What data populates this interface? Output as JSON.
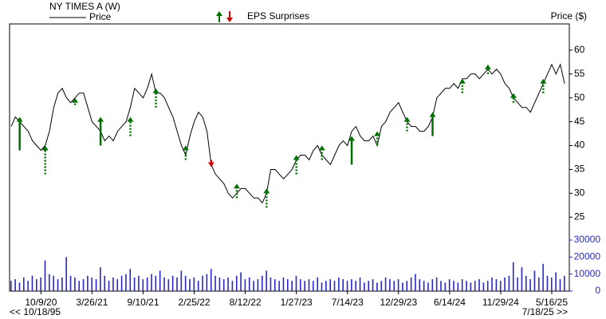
{
  "chart_data": {
    "type": "stock",
    "title": "NY TIMES  A (W)",
    "legend_price": "Price",
    "legend_eps": "EPS Surprises",
    "y_label": "Price ($)",
    "start_label": "<< 10/18/95",
    "end_label": "7/18/25 >>",
    "xlim": [
      0,
      130
    ],
    "xticks": [
      {
        "value": 7,
        "label": "10/9/20"
      },
      {
        "value": 19,
        "label": "3/26/21"
      },
      {
        "value": 31,
        "label": "9/10/21"
      },
      {
        "value": 43,
        "label": "2/25/22"
      },
      {
        "value": 55,
        "label": "8/12/22"
      },
      {
        "value": 67,
        "label": "1/27/23"
      },
      {
        "value": 79,
        "label": "7/14/23"
      },
      {
        "value": 91,
        "label": "12/29/23"
      },
      {
        "value": 103,
        "label": "6/14/24"
      },
      {
        "value": 115,
        "label": "11/29/24"
      },
      {
        "value": 127,
        "label": "5/16/25"
      }
    ],
    "ylim": [
      9.5,
      65.5
    ],
    "yticks": [
      25,
      30,
      35,
      40,
      45,
      50,
      55,
      60
    ],
    "y2lim": [
      0,
      157000
    ],
    "y2ticks": [
      0,
      10000,
      20000,
      30000
    ],
    "series": [
      {
        "name": "Price",
        "color": "#000000",
        "values": [
          44,
          46,
          45,
          44,
          43,
          41,
          40,
          39,
          40,
          43,
          48,
          51,
          52,
          50,
          49,
          50,
          51,
          51,
          48,
          45,
          44,
          43,
          41,
          42,
          41,
          43,
          44,
          45,
          48,
          52,
          51,
          50,
          52,
          55,
          51,
          51,
          50,
          48,
          46,
          43,
          40,
          38,
          42,
          45,
          47,
          46,
          43,
          36,
          34,
          33,
          32,
          30,
          29,
          30,
          31,
          31,
          30,
          29,
          29,
          28,
          30,
          35,
          35,
          34,
          33,
          34,
          35,
          37,
          38,
          38,
          37,
          39,
          40,
          38,
          37,
          36,
          38,
          40,
          41,
          40,
          43,
          44,
          42,
          41,
          41,
          42,
          40,
          44,
          45,
          47,
          48,
          49,
          47,
          45,
          44,
          44,
          43,
          43,
          44,
          46,
          50,
          51,
          52,
          52,
          53,
          52,
          54,
          54,
          55,
          55,
          54,
          55,
          56,
          55,
          56,
          55,
          53,
          52,
          50,
          49,
          48,
          48,
          47,
          49,
          51,
          53,
          55,
          57,
          55,
          57,
          53
        ]
      },
      {
        "name": "Volume",
        "color": "#2828c8",
        "axis": "y2",
        "values": [
          6000,
          7000,
          5000,
          8000,
          6000,
          9000,
          7000,
          8000,
          18000,
          10000,
          9000,
          7000,
          8000,
          20000,
          9000,
          8000,
          6000,
          7000,
          9000,
          8000,
          7000,
          14000,
          9000,
          6000,
          8000,
          7000,
          9000,
          10000,
          13000,
          8000,
          9000,
          7000,
          8000,
          10000,
          9000,
          12000,
          8000,
          7000,
          9000,
          8000,
          12000,
          9000,
          7000,
          8000,
          6000,
          9000,
          10000,
          13000,
          9000,
          8000,
          7000,
          8000,
          6000,
          9000,
          11000,
          7000,
          8000,
          6000,
          7000,
          9000,
          12000,
          8000,
          7000,
          6000,
          8000,
          7000,
          6000,
          9000,
          7000,
          6000,
          7000,
          6000,
          8000,
          5000,
          6000,
          7000,
          6000,
          8000,
          7000,
          6000,
          7000,
          6000,
          8000,
          5000,
          6000,
          7000,
          5000,
          6000,
          8000,
          7000,
          6000,
          7000,
          5000,
          6000,
          8000,
          10000,
          7000,
          6000,
          5000,
          7000,
          8000,
          6000,
          5000,
          7000,
          6000,
          5000,
          7000,
          6000,
          5000,
          6000,
          7000,
          5000,
          6000,
          8000,
          7000,
          6000,
          8000,
          9000,
          17000,
          8000,
          14000,
          9000,
          7000,
          12000,
          8000,
          16000,
          9000,
          8000,
          11000,
          7000,
          9000
        ]
      }
    ],
    "eps_surprises": [
      {
        "index": 2,
        "value": 46,
        "base": 39,
        "direction": "up",
        "line": "solid"
      },
      {
        "index": 8,
        "value": 40,
        "base": 34,
        "direction": "up",
        "line": "dotted"
      },
      {
        "index": 15,
        "value": 50,
        "base": 48.5,
        "direction": "up",
        "line": "dotted"
      },
      {
        "index": 21,
        "value": 46,
        "base": 40,
        "direction": "up",
        "line": "solid"
      },
      {
        "index": 28,
        "value": 46,
        "base": 42,
        "direction": "up",
        "line": "dotted"
      },
      {
        "index": 34,
        "value": 52,
        "base": 48,
        "direction": "up",
        "line": "dotted"
      },
      {
        "index": 41,
        "value": 40,
        "base": 37,
        "direction": "up",
        "line": "dotted"
      },
      {
        "index": 47,
        "value": 35.5,
        "base": 37,
        "direction": "down",
        "line": "solid"
      },
      {
        "index": 53,
        "value": 32,
        "base": 29,
        "direction": "up",
        "line": "dotted"
      },
      {
        "index": 60,
        "value": 31,
        "base": 27,
        "direction": "up",
        "line": "dotted"
      },
      {
        "index": 67,
        "value": 38,
        "base": 34,
        "direction": "up",
        "line": "dotted"
      },
      {
        "index": 73,
        "value": 40,
        "base": 37,
        "direction": "up",
        "line": "dotted"
      },
      {
        "index": 80,
        "value": 42,
        "base": 36,
        "direction": "up",
        "line": "solid"
      },
      {
        "index": 86,
        "value": 43,
        "base": 40,
        "direction": "up",
        "line": "dotted"
      },
      {
        "index": 93,
        "value": 46,
        "base": 43,
        "direction": "up",
        "line": "dotted"
      },
      {
        "index": 99,
        "value": 47,
        "base": 42,
        "direction": "up",
        "line": "solid"
      },
      {
        "index": 106,
        "value": 54,
        "base": 51,
        "direction": "up",
        "line": "dotted"
      },
      {
        "index": 112,
        "value": 57,
        "base": 55,
        "direction": "up",
        "line": "dotted"
      },
      {
        "index": 118,
        "value": 51,
        "base": 49,
        "direction": "up",
        "line": "dotted"
      },
      {
        "index": 125,
        "value": 54,
        "base": 51,
        "direction": "up",
        "line": "dotted"
      }
    ],
    "up_color": "#007000",
    "down_color": "#d00000"
  }
}
